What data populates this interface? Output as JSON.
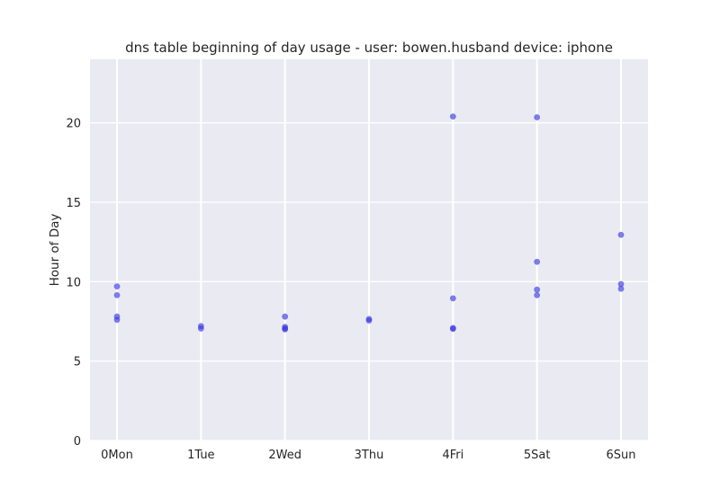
{
  "chart_data": {
    "type": "scatter",
    "title": "dns table beginning of day usage -  user: bowen.husband device: iphone",
    "xlabel": "",
    "ylabel": "Hour of Day",
    "categories": [
      "0Mon",
      "1Tue",
      "2Wed",
      "3Thu",
      "4Fri",
      "5Sat",
      "6Sun"
    ],
    "ylim": [
      0,
      24
    ],
    "yticks": [
      0,
      5,
      10,
      15,
      20
    ],
    "grid": true,
    "colors": {
      "background": "#eaeaf2",
      "grid": "#ffffff",
      "point": "#3b3be0"
    },
    "series": [
      {
        "points": [
          {
            "x": "0Mon",
            "y": 9.7
          },
          {
            "x": "0Mon",
            "y": 9.15
          },
          {
            "x": "0Mon",
            "y": 7.8
          },
          {
            "x": "0Mon",
            "y": 7.6
          },
          {
            "x": "1Tue",
            "y": 7.2
          },
          {
            "x": "1Tue",
            "y": 7.05
          },
          {
            "x": "2Wed",
            "y": 7.8
          },
          {
            "x": "2Wed",
            "y": 7.15
          },
          {
            "x": "2Wed",
            "y": 7.05
          },
          {
            "x": "2Wed",
            "y": 7.0
          },
          {
            "x": "3Thu",
            "y": 7.65
          },
          {
            "x": "3Thu",
            "y": 7.55
          },
          {
            "x": "4Fri",
            "y": 20.4
          },
          {
            "x": "4Fri",
            "y": 8.95
          },
          {
            "x": "4Fri",
            "y": 7.08
          },
          {
            "x": "4Fri",
            "y": 7.03
          },
          {
            "x": "5Sat",
            "y": 20.35
          },
          {
            "x": "5Sat",
            "y": 11.25
          },
          {
            "x": "5Sat",
            "y": 9.5
          },
          {
            "x": "5Sat",
            "y": 9.15
          },
          {
            "x": "6Sun",
            "y": 12.95
          },
          {
            "x": "6Sun",
            "y": 9.85
          },
          {
            "x": "6Sun",
            "y": 9.55
          }
        ]
      }
    ]
  }
}
